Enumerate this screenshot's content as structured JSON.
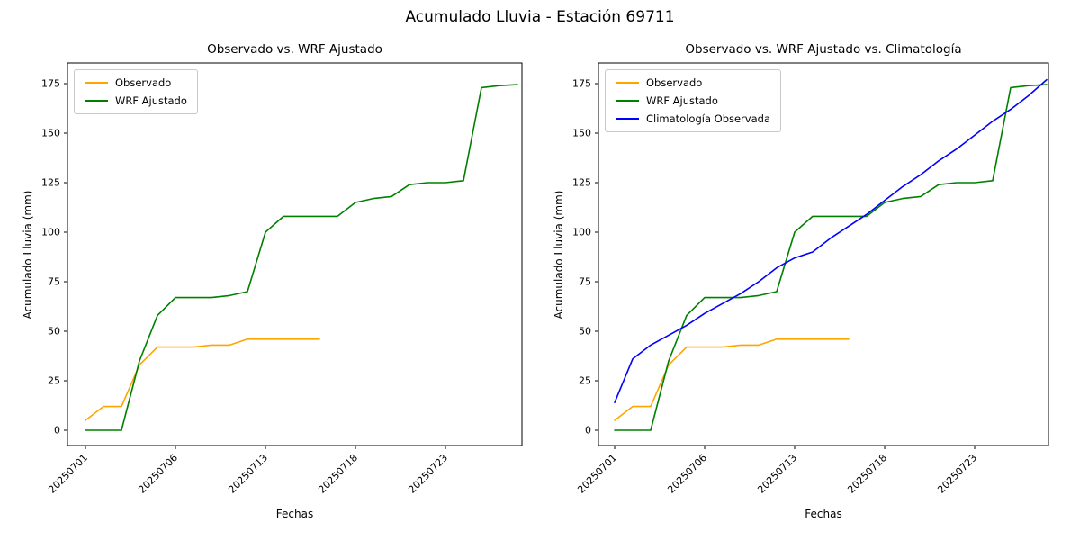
{
  "figure": {
    "title": "Acumulado Lluvia - Estación 69711"
  },
  "chart_data": [
    {
      "type": "line",
      "title": "Observado vs. WRF Ajustado",
      "xlabel": "Fechas",
      "ylabel": "Acumulado Lluvia (mm)",
      "yticks": [
        0,
        25,
        50,
        75,
        100,
        125,
        150,
        175
      ],
      "ylim": [
        -8,
        186
      ],
      "grid": false,
      "legend_position": "upper left",
      "xticks": {
        "positions": [
          0,
          5,
          10,
          15,
          20
        ],
        "labels": [
          "20250701",
          "20250706",
          "20250713",
          "20250718",
          "20250723"
        ]
      },
      "series": [
        {
          "name": "Observado",
          "color": "#ffa500",
          "values": [
            5,
            12,
            12,
            33,
            42,
            42,
            42,
            43,
            43,
            46,
            46,
            46,
            46,
            46
          ]
        },
        {
          "name": "WRF Ajustado",
          "color": "#008000",
          "values": [
            0,
            0,
            0,
            35,
            58,
            67,
            67,
            67,
            68,
            70,
            100,
            108,
            108,
            108,
            108,
            115,
            117,
            118,
            124,
            125,
            125,
            126,
            173,
            174,
            174.5
          ]
        }
      ]
    },
    {
      "type": "line",
      "title": "Observado vs. WRF Ajustado vs. Climatología",
      "xlabel": "Fechas",
      "ylabel": "Acumulado Lluvia (mm)",
      "yticks": [
        0,
        25,
        50,
        75,
        100,
        125,
        150,
        175
      ],
      "ylim": [
        -8,
        186
      ],
      "grid": false,
      "legend_position": "upper left",
      "xticks": {
        "positions": [
          0,
          5,
          10,
          15,
          20
        ],
        "labels": [
          "20250701",
          "20250706",
          "20250713",
          "20250718",
          "20250723"
        ]
      },
      "series": [
        {
          "name": "Observado",
          "color": "#ffa500",
          "values": [
            5,
            12,
            12,
            33,
            42,
            42,
            42,
            43,
            43,
            46,
            46,
            46,
            46,
            46
          ]
        },
        {
          "name": "WRF Ajustado",
          "color": "#008000",
          "values": [
            0,
            0,
            0,
            35,
            58,
            67,
            67,
            67,
            68,
            70,
            100,
            108,
            108,
            108,
            108,
            115,
            117,
            118,
            124,
            125,
            125,
            126,
            173,
            174,
            174.5
          ]
        },
        {
          "name": "Climatología Observada",
          "color": "#0000ff",
          "values": [
            14,
            36,
            43,
            48,
            53,
            59,
            64,
            69,
            75,
            82,
            87,
            90,
            97,
            103,
            109,
            116,
            123,
            129,
            136,
            142,
            149,
            156,
            162,
            169,
            177
          ]
        }
      ]
    }
  ]
}
